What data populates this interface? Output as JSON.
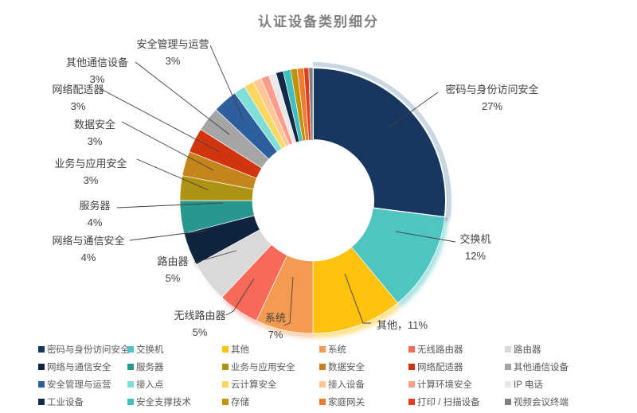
{
  "chart_data": {
    "type": "donut",
    "title": "认证设备类别细分",
    "unit": "percent",
    "legend_position": "bottom",
    "start_angle_deg": 0,
    "slices": [
      {
        "name": "密码与身份访问安全",
        "value": 27,
        "color": "#17375E"
      },
      {
        "name": "交换机",
        "value": 12,
        "color": "#4EC5C1"
      },
      {
        "name": "其他",
        "value": 11,
        "color": "#FFC20E"
      },
      {
        "name": "系统",
        "value": 7,
        "color": "#F59B51"
      },
      {
        "name": "无线路由器",
        "value": 5,
        "color": "#F8695A"
      },
      {
        "name": "路由器",
        "value": 5,
        "color": "#D9D9D9"
      },
      {
        "name": "网络与通信安全",
        "value": 4,
        "color": "#10243E"
      },
      {
        "name": "服务器",
        "value": 4,
        "color": "#28978F"
      },
      {
        "name": "业务与应用安全",
        "value": 3,
        "color": "#AE9313"
      },
      {
        "name": "数据安全",
        "value": 3,
        "color": "#C5851C"
      },
      {
        "name": "网络配适器",
        "value": 3,
        "color": "#D0350F"
      },
      {
        "name": "其他通信设备",
        "value": 3,
        "color": "#A5A5A5"
      },
      {
        "name": "安全管理与运营",
        "value": 3,
        "color": "#2D5F9E"
      },
      {
        "name": "接入点",
        "value": 1.4,
        "color": "#7FDFD8"
      },
      {
        "name": "云计算安全",
        "value": 1.2,
        "color": "#FFD75E"
      },
      {
        "name": "接入设备",
        "value": 1.0,
        "color": "#FFC795"
      },
      {
        "name": "计算环境安全",
        "value": 1.0,
        "color": "#FF9C8C"
      },
      {
        "name": "IP 电话",
        "value": 0.9,
        "color": "#E9E9E9"
      },
      {
        "name": "工业设备",
        "value": 0.9,
        "color": "#122A47"
      },
      {
        "name": "安全支撑技术",
        "value": 0.9,
        "color": "#3FBFBF"
      },
      {
        "name": "存储",
        "value": 0.8,
        "color": "#C09206"
      },
      {
        "name": "家庭网关",
        "value": 0.8,
        "color": "#ED7D31"
      },
      {
        "name": "打印 / 扫描设备",
        "value": 0.6,
        "color": "#E23B1E"
      },
      {
        "name": "视频会议终端",
        "value": 0.5,
        "color": "#7F7F7F"
      }
    ],
    "callouts": [
      {
        "line1": "密码与身份访问安全",
        "line2": "27%"
      },
      {
        "line1": "交换机",
        "line2": "12%"
      },
      {
        "line1": "其他，11%",
        "line2": ""
      },
      {
        "line1": "系统",
        "line2": "7%"
      },
      {
        "line1": "无线路由器",
        "line2": "5%"
      },
      {
        "line1": "路由器",
        "line2": "5%"
      },
      {
        "line1": "网络与通信安全",
        "line2": "4%"
      },
      {
        "line1": "服务器",
        "line2": "4%"
      },
      {
        "line1": "业务与应用安全",
        "line2": "3%"
      },
      {
        "line1": "数据安全",
        "line2": "3%"
      },
      {
        "line1": "网络配适器",
        "line2": "3%"
      },
      {
        "line1": "其他通信设备",
        "line2": "3%"
      },
      {
        "line1": "安全管理与运营",
        "line2": "3%"
      }
    ],
    "highlight_halo_color": "#C9D6E3"
  }
}
